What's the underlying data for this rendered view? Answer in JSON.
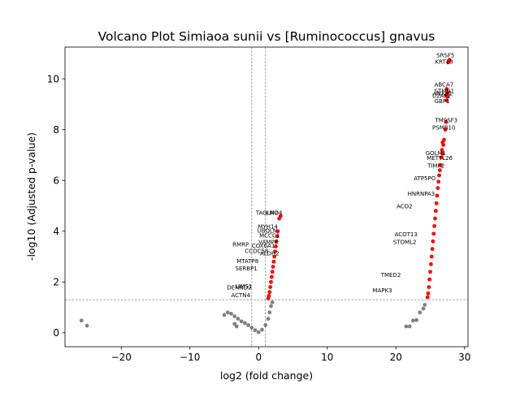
{
  "chart_data": {
    "type": "scatter",
    "title": "Volcano Plot Simiaoa sunii vs [Ruminococcus] gnavus",
    "xlabel": "log2 (fold change)",
    "ylabel": "-log10 (Adjusted p-value)",
    "xlim": [
      -28.2,
      30.5
    ],
    "ylim": [
      -0.55,
      11.25
    ],
    "xticks": [
      -20,
      -10,
      0,
      10,
      20,
      30
    ],
    "xtick_labels": [
      "−20",
      "−10",
      "0",
      "10",
      "20",
      "30"
    ],
    "yticks": [
      0,
      2,
      4,
      6,
      8,
      10
    ],
    "ytick_labels": [
      "0",
      "2",
      "4",
      "6",
      "8",
      "10"
    ],
    "thresholds": {
      "fold_change_log2": [
        -1,
        1
      ],
      "neg_log10_p": 1.3
    },
    "colors": {
      "significant": "#ff0000",
      "not_significant": "#808080",
      "threshold_line": "#808080",
      "label_text": "#000000"
    },
    "series": [
      {
        "name": "significant",
        "color": "#ff0000",
        "points": [
          [
            27.8,
            10.75
          ],
          [
            27.6,
            10.65
          ],
          [
            27.4,
            9.6
          ],
          [
            27.5,
            9.45
          ],
          [
            27.3,
            9.35
          ],
          [
            27.5,
            9.3
          ],
          [
            27.4,
            9.15
          ],
          [
            27.3,
            8.3
          ],
          [
            27.2,
            8.0
          ],
          [
            27.0,
            7.6
          ],
          [
            26.8,
            7.5
          ],
          [
            26.9,
            7.4
          ],
          [
            26.7,
            7.2
          ],
          [
            26.8,
            7.05
          ],
          [
            26.6,
            6.9
          ],
          [
            26.5,
            6.6
          ],
          [
            26.4,
            6.4
          ],
          [
            26.3,
            6.2
          ],
          [
            26.2,
            5.95
          ],
          [
            26.1,
            5.7
          ],
          [
            26.0,
            5.4
          ],
          [
            25.9,
            5.1
          ],
          [
            25.8,
            4.8
          ],
          [
            25.7,
            4.5
          ],
          [
            25.6,
            4.2
          ],
          [
            25.5,
            3.9
          ],
          [
            25.4,
            3.6
          ],
          [
            25.3,
            3.3
          ],
          [
            25.2,
            3.0
          ],
          [
            25.1,
            2.7
          ],
          [
            25.0,
            2.4
          ],
          [
            24.9,
            2.1
          ],
          [
            24.8,
            1.8
          ],
          [
            24.7,
            1.55
          ],
          [
            24.6,
            1.4
          ],
          [
            3.2,
            4.6
          ],
          [
            3.0,
            4.5
          ],
          [
            2.8,
            4.0
          ],
          [
            2.7,
            3.8
          ],
          [
            2.6,
            3.6
          ],
          [
            2.5,
            3.4
          ],
          [
            2.4,
            3.2
          ],
          [
            2.3,
            3.0
          ],
          [
            2.2,
            2.8
          ],
          [
            2.1,
            2.6
          ],
          [
            2.0,
            2.4
          ],
          [
            1.9,
            2.2
          ],
          [
            1.8,
            2.0
          ],
          [
            1.7,
            1.8
          ],
          [
            1.6,
            1.6
          ],
          [
            1.5,
            1.45
          ],
          [
            1.4,
            1.35
          ]
        ]
      },
      {
        "name": "not significant",
        "color": "#808080",
        "points": [
          [
            -25.8,
            0.48
          ],
          [
            -25.0,
            0.28
          ],
          [
            -5.0,
            0.7
          ],
          [
            -4.5,
            0.8
          ],
          [
            -4.0,
            0.75
          ],
          [
            -3.5,
            0.65
          ],
          [
            -3.0,
            0.55
          ],
          [
            -3.5,
            0.35
          ],
          [
            -3.2,
            0.25
          ],
          [
            -2.5,
            0.45
          ],
          [
            -2.0,
            0.38
          ],
          [
            -1.5,
            0.3
          ],
          [
            -1.0,
            0.2
          ],
          [
            -0.5,
            0.1
          ],
          [
            0.0,
            0.02
          ],
          [
            0.5,
            0.12
          ],
          [
            1.0,
            0.3
          ],
          [
            1.4,
            0.55
          ],
          [
            1.6,
            0.8
          ],
          [
            1.8,
            1.05
          ],
          [
            2.0,
            1.2
          ],
          [
            21.5,
            0.25
          ],
          [
            22.0,
            0.25
          ],
          [
            22.5,
            0.48
          ],
          [
            23.0,
            0.5
          ],
          [
            23.5,
            0.8
          ],
          [
            24.0,
            0.95
          ],
          [
            24.2,
            1.1
          ]
        ]
      }
    ],
    "annotations": [
      {
        "text": "SRSF5",
        "x": 25.9,
        "y": 10.85
      },
      {
        "text": "KRT18",
        "x": 25.7,
        "y": 10.6
      },
      {
        "text": "ABCA7",
        "x": 25.6,
        "y": 9.7
      },
      {
        "text": "STMN1",
        "x": 25.6,
        "y": 9.45
      },
      {
        "text": "ANXA1",
        "x": 25.4,
        "y": 9.35
      },
      {
        "text": "U2AF2",
        "x": 25.3,
        "y": 9.25
      },
      {
        "text": "GBP1",
        "x": 25.6,
        "y": 9.05
      },
      {
        "text": "TM9SF3",
        "x": 25.7,
        "y": 8.3
      },
      {
        "text": "PSMB10",
        "x": 25.3,
        "y": 8.0
      },
      {
        "text": "GOLM1",
        "x": 24.3,
        "y": 7.0
      },
      {
        "text": "METTL26",
        "x": 24.5,
        "y": 6.8
      },
      {
        "text": "TIMP2",
        "x": 24.6,
        "y": 6.5
      },
      {
        "text": "ATP5PO",
        "x": 22.6,
        "y": 6.0
      },
      {
        "text": "HNRNPA3",
        "x": 21.7,
        "y": 5.4
      },
      {
        "text": "ACO2",
        "x": 20.1,
        "y": 4.9
      },
      {
        "text": "STOML2",
        "x": 19.6,
        "y": 3.5
      },
      {
        "text": "ACOT13",
        "x": 19.8,
        "y": 3.8
      },
      {
        "text": "TMED2",
        "x": 17.8,
        "y": 2.2
      },
      {
        "text": "MAPK3",
        "x": 16.6,
        "y": 1.6
      },
      {
        "text": "TAGLN2",
        "x": -0.4,
        "y": 4.65
      },
      {
        "text": "LMO4",
        "x": 1.1,
        "y": 4.65
      },
      {
        "text": "MYH14",
        "x": -0.1,
        "y": 4.1
      },
      {
        "text": "UBQLN",
        "x": -0.2,
        "y": 3.95
      },
      {
        "text": "MCCC1",
        "x": 0.1,
        "y": 3.75
      },
      {
        "text": "VAMP8",
        "x": 0.0,
        "y": 3.5
      },
      {
        "text": "RMRP",
        "x": -3.8,
        "y": 3.4
      },
      {
        "text": "COX6A1",
        "x": -1.0,
        "y": 3.35
      },
      {
        "text": "CCDC58",
        "x": -2.0,
        "y": 3.15
      },
      {
        "text": "ALDH2",
        "x": 0.2,
        "y": 3.05
      },
      {
        "text": "MTATP8",
        "x": -3.2,
        "y": 2.75
      },
      {
        "text": "SERBP1",
        "x": -3.4,
        "y": 2.45
      },
      {
        "text": "LIMS1",
        "x": -3.4,
        "y": 1.75
      },
      {
        "text": "DENND2",
        "x": -4.6,
        "y": 1.7
      },
      {
        "text": "ACTN4",
        "x": -4.0,
        "y": 1.4
      }
    ]
  }
}
